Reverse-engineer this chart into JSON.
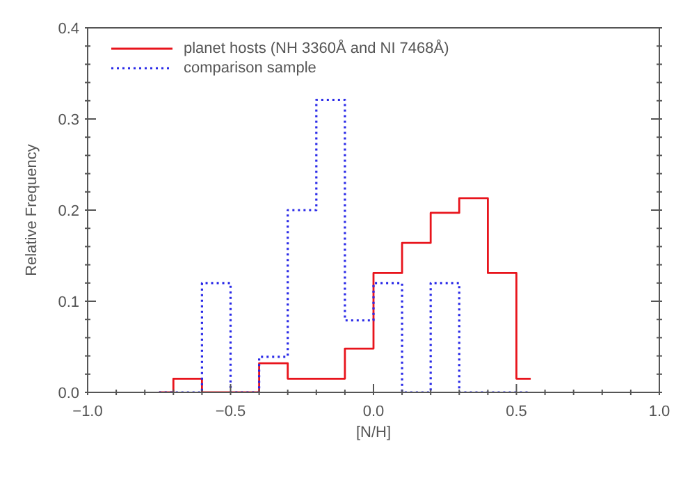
{
  "chart_data": {
    "type": "histogram",
    "xlabel": "[N/H]",
    "ylabel": "Relative Frequency",
    "bins": [
      -0.75,
      -0.7,
      -0.6,
      -0.5,
      -0.4,
      -0.3,
      -0.2,
      -0.1,
      0,
      0.1,
      0.2,
      0.3,
      0.4,
      0.5,
      0.55
    ],
    "series": [
      {
        "name": "planet hosts (NH 3360Å and NI 7468Å)",
        "color": "#e8141c",
        "line_style": "solid",
        "values": [
          0,
          0.015,
          0,
          0,
          0.032,
          0.015,
          0.015,
          0.048,
          0.131,
          0.164,
          0.197,
          0.213,
          0.131,
          0.015
        ]
      },
      {
        "name": "comparison sample",
        "color": "#2a2ae8",
        "line_style": "dotted",
        "values": [
          0,
          0,
          0.12,
          0,
          0.039,
          0.2,
          0.321,
          0.079,
          0.12,
          0,
          0.12,
          0,
          0,
          0
        ]
      }
    ],
    "xlim": [
      -1,
      1
    ],
    "xticks": [
      {
        "value": -1,
        "label": "−1.0"
      },
      {
        "value": -0.9,
        "label": null
      },
      {
        "value": -0.8,
        "label": null
      },
      {
        "value": -0.7,
        "label": null
      },
      {
        "value": -0.6,
        "label": null
      },
      {
        "value": -0.5,
        "label": "−0.5"
      },
      {
        "value": -0.4,
        "label": null
      },
      {
        "value": -0.3,
        "label": null
      },
      {
        "value": -0.2,
        "label": null
      },
      {
        "value": -0.1,
        "label": null
      },
      {
        "value": 0,
        "label": "0.0"
      },
      {
        "value": 0.1,
        "label": null
      },
      {
        "value": 0.2,
        "label": null
      },
      {
        "value": 0.3,
        "label": null
      },
      {
        "value": 0.4,
        "label": null
      },
      {
        "value": 0.5,
        "label": "0.5"
      },
      {
        "value": 0.6,
        "label": null
      },
      {
        "value": 0.7,
        "label": null
      },
      {
        "value": 0.8,
        "label": null
      },
      {
        "value": 0.9,
        "label": null
      },
      {
        "value": 1,
        "label": "1.0"
      }
    ],
    "ylim": [
      0,
      0.4
    ],
    "yticks": [
      {
        "value": 0,
        "label": "0.0"
      },
      {
        "value": 0.02,
        "label": null
      },
      {
        "value": 0.04,
        "label": null
      },
      {
        "value": 0.06,
        "label": null
      },
      {
        "value": 0.08,
        "label": null
      },
      {
        "value": 0.1,
        "label": "0.1"
      },
      {
        "value": 0.12,
        "label": null
      },
      {
        "value": 0.14,
        "label": null
      },
      {
        "value": 0.16,
        "label": null
      },
      {
        "value": 0.18,
        "label": null
      },
      {
        "value": 0.2,
        "label": "0.2"
      },
      {
        "value": 0.22,
        "label": null
      },
      {
        "value": 0.24,
        "label": null
      },
      {
        "value": 0.26,
        "label": null
      },
      {
        "value": 0.28,
        "label": null
      },
      {
        "value": 0.3,
        "label": "0.3"
      },
      {
        "value": 0.32,
        "label": null
      },
      {
        "value": 0.34,
        "label": null
      },
      {
        "value": 0.36,
        "label": null
      },
      {
        "value": 0.38,
        "label": null
      },
      {
        "value": 0.4,
        "label": "0.4"
      }
    ],
    "legend": "top left"
  }
}
